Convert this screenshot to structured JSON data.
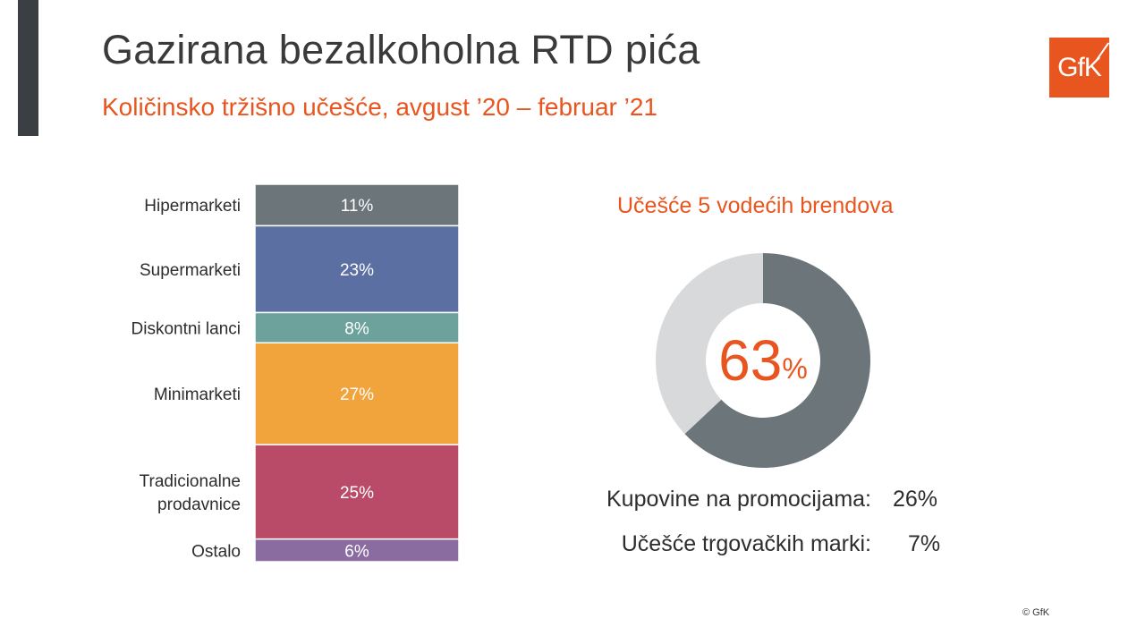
{
  "title": "Gazirana bezalkoholna RTD pića",
  "subtitle": "Količinsko tržišno učešće, avgust ’20 – februar ’21",
  "logo_text": "GfK",
  "chart_data": [
    {
      "type": "bar",
      "stacked": true,
      "orientation": "vertical-stack",
      "categories": [
        "Hipermarketi",
        "Supermarketi",
        "Diskontni lanci",
        "Minimarketi",
        "Tradicionalne prodavnice",
        "Ostalo"
      ],
      "category_lines": [
        [
          "Hipermarketi"
        ],
        [
          "Supermarketi"
        ],
        [
          "Diskontni lanci"
        ],
        [
          "Minimarketi"
        ],
        [
          "Tradicionalne",
          "prodavnice"
        ],
        [
          "Ostalo"
        ]
      ],
      "values": [
        11,
        23,
        8,
        27,
        25,
        6
      ],
      "value_labels": [
        "11%",
        "23%",
        "8%",
        "27%",
        "25%",
        "6%"
      ],
      "colors": [
        "#6b757a",
        "#5c6fa3",
        "#6da29c",
        "#f0a43b",
        "#b94a68",
        "#8a6ca0"
      ]
    },
    {
      "type": "pie",
      "donut": true,
      "title": "Učešće 5 vodećih brendova",
      "values": [
        63,
        37
      ],
      "colors": [
        "#6b757a",
        "#d8d9db"
      ],
      "center_value": "63",
      "center_unit": "%"
    }
  ],
  "stats": [
    {
      "label": "Kupovine na promocijama:",
      "value": "26%"
    },
    {
      "label": "Učešće trgovačkih marki:",
      "value": "7%"
    }
  ],
  "copyright": "© GfK"
}
